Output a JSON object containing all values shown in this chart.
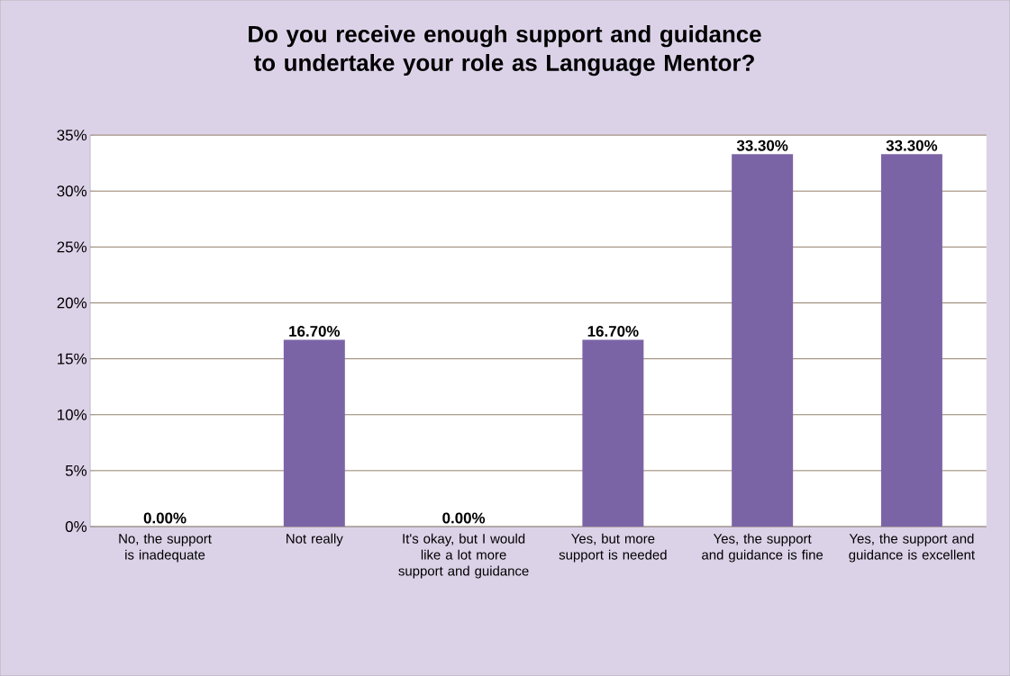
{
  "chart_data": {
    "type": "bar",
    "title": "Do you receive enough support and guidance to undertake your role as Language Mentor?",
    "categories": [
      "No, the support is inadequate",
      "Not really",
      "It's okay, but I would like a lot more support and guidance",
      "Yes, but more support is needed",
      "Yes, the support and guidance is fine",
      "Yes, the support and guidance is excellent"
    ],
    "values": [
      0,
      16.7,
      0,
      16.7,
      33.3,
      33.3
    ],
    "value_labels": [
      "0.00%",
      "16.70%",
      "0.00%",
      "16.70%",
      "33.30%",
      "33.30%"
    ],
    "color": "#7b64a6",
    "ylim": [
      0,
      35
    ],
    "yticks": [
      {
        "value": 0,
        "label": "0%"
      },
      {
        "value": 5,
        "label": "5%"
      },
      {
        "value": 10,
        "label": "10%"
      },
      {
        "value": 15,
        "label": "15%"
      },
      {
        "value": 20,
        "label": "20%"
      },
      {
        "value": 25,
        "label": "25%"
      },
      {
        "value": 30,
        "label": "30%"
      },
      {
        "value": 35,
        "label": "35%"
      }
    ],
    "grid": "y"
  }
}
